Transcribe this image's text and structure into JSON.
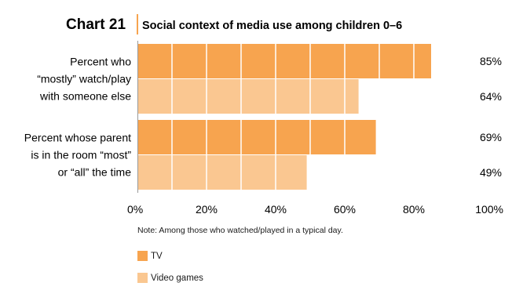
{
  "chart_data": {
    "type": "bar",
    "orientation": "horizontal",
    "chart_number": "Chart 21",
    "title": "Social context of media use among children 0–6",
    "categories": [
      [
        "Percent who",
        "“mostly” watch/play",
        "with someone else"
      ],
      [
        "Percent whose parent",
        "is in the room “most”",
        "or “all” the time"
      ]
    ],
    "series": [
      {
        "name": "TV",
        "values": [
          85,
          69
        ],
        "value_labels": [
          "85%",
          "69%"
        ],
        "color": "#F7A44F"
      },
      {
        "name": "Video games",
        "values": [
          64,
          49
        ],
        "value_labels": [
          "64%",
          "49%"
        ],
        "color": "#FAC791"
      }
    ],
    "xlim": [
      0,
      100
    ],
    "x_ticks": [
      {
        "value": 0,
        "label": "0%"
      },
      {
        "value": 20,
        "label": "20%"
      },
      {
        "value": 40,
        "label": "40%"
      },
      {
        "value": 60,
        "label": "60%"
      },
      {
        "value": 80,
        "label": "80%"
      },
      {
        "value": 100,
        "label": "100%"
      }
    ],
    "grid": "vertical lines every 10%",
    "legend_position": "bottom-left",
    "note": "Note: Among those who watched/played in a typical day."
  }
}
